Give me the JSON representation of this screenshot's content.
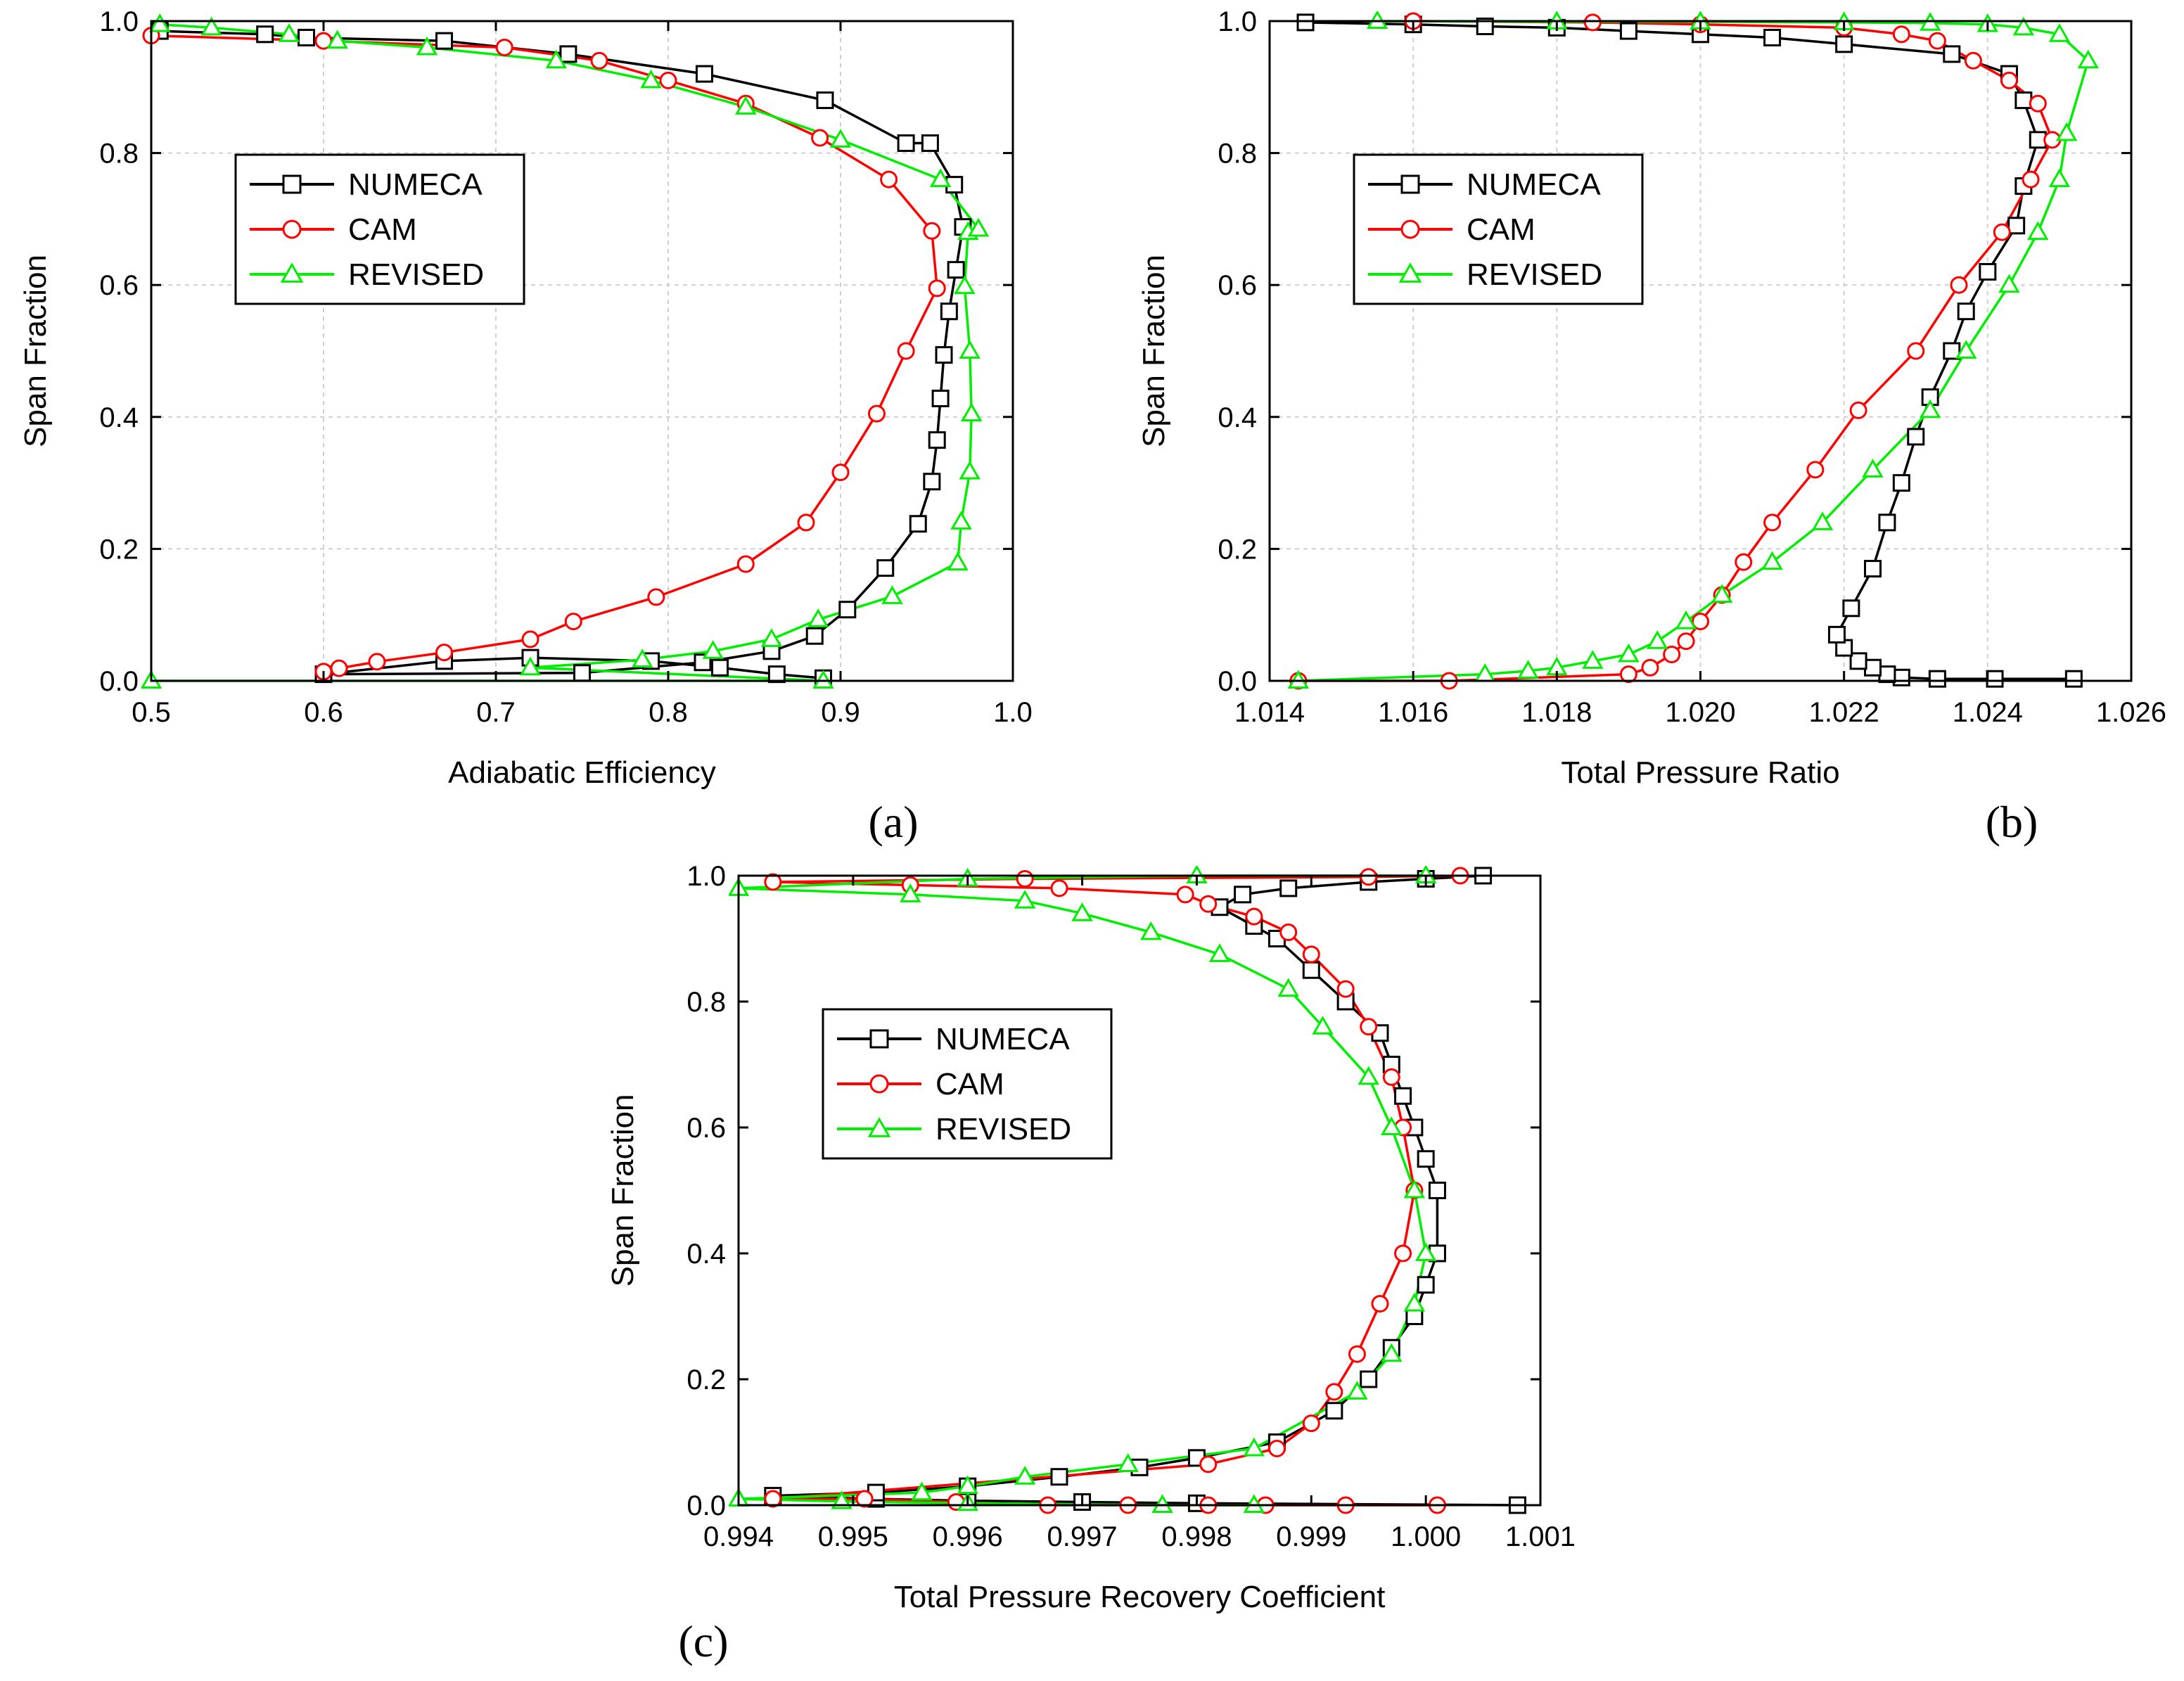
{
  "colors": {
    "NUMECA": "#000000",
    "CAM": "#ff0000",
    "REVISED": "#00ee00",
    "grid": "#cfcfcf"
  },
  "chart_data": [
    {
      "id": "a",
      "type": "line",
      "panel_label": "(a)",
      "xlabel": "Adiabatic Efficiency",
      "ylabel": "Span Fraction",
      "xlim": [
        0.5,
        1.0
      ],
      "ylim": [
        0.0,
        1.0
      ],
      "xticks": [
        0.5,
        0.6,
        0.7,
        0.8,
        0.9,
        1.0
      ],
      "xtick_labels": [
        "0.5",
        "0.6",
        "0.7",
        "0.8",
        "0.9",
        "1.0"
      ],
      "yticks": [
        0.0,
        0.2,
        0.4,
        0.6,
        0.8,
        1.0
      ],
      "ytick_labels": [
        "0.0",
        "0.2",
        "0.4",
        "0.6",
        "0.8",
        "1.0"
      ],
      "grid": true,
      "legend_position": "upper-left",
      "series": [
        {
          "name": "NUMECA",
          "marker": "square",
          "x": [
            0.89,
            0.863,
            0.83,
            0.79,
            0.72,
            0.67,
            0.6,
            0.75,
            0.82,
            0.86,
            0.885,
            0.904,
            0.926,
            0.945,
            0.953,
            0.956,
            0.958,
            0.96,
            0.963,
            0.967,
            0.971,
            0.966,
            0.952,
            0.938,
            0.891,
            0.821,
            0.742,
            0.67,
            0.59,
            0.566,
            0.505
          ],
          "y": [
            0.004,
            0.01,
            0.02,
            0.03,
            0.035,
            0.03,
            0.01,
            0.012,
            0.028,
            0.045,
            0.068,
            0.108,
            0.171,
            0.238,
            0.302,
            0.365,
            0.428,
            0.494,
            0.56,
            0.623,
            0.688,
            0.752,
            0.815,
            0.815,
            0.88,
            0.92,
            0.95,
            0.97,
            0.975,
            0.98,
            0.985
          ]
        },
        {
          "name": "CAM",
          "marker": "circle",
          "x": [
            0.6,
            0.609,
            0.631,
            0.67,
            0.72,
            0.745,
            0.793,
            0.845,
            0.88,
            0.9,
            0.921,
            0.938,
            0.956,
            0.953,
            0.928,
            0.888,
            0.845,
            0.8,
            0.76,
            0.705,
            0.6,
            0.5
          ],
          "y": [
            0.014,
            0.019,
            0.029,
            0.043,
            0.063,
            0.09,
            0.127,
            0.177,
            0.24,
            0.316,
            0.405,
            0.5,
            0.595,
            0.682,
            0.76,
            0.823,
            0.875,
            0.91,
            0.94,
            0.96,
            0.97,
            0.978
          ]
        },
        {
          "name": "REVISED",
          "marker": "triangle",
          "x": [
            0.5,
            0.89,
            0.72,
            0.785,
            0.826,
            0.86,
            0.887,
            0.93,
            0.968,
            0.97,
            0.975,
            0.976,
            0.975,
            0.972,
            0.974,
            0.98,
            0.958,
            0.9,
            0.845,
            0.79,
            0.735,
            0.66,
            0.608,
            0.58,
            0.535,
            0.505
          ],
          "y": [
            0.0,
            0.0,
            0.02,
            0.032,
            0.045,
            0.063,
            0.093,
            0.128,
            0.179,
            0.241,
            0.317,
            0.405,
            0.5,
            0.598,
            0.68,
            0.685,
            0.76,
            0.82,
            0.87,
            0.91,
            0.94,
            0.96,
            0.97,
            0.98,
            0.99,
            0.995
          ]
        }
      ]
    },
    {
      "id": "b",
      "type": "line",
      "panel_label": "(b)",
      "xlabel": "Total Pressure Ratio",
      "ylabel": "Span Fraction",
      "xlim": [
        1.014,
        1.026
      ],
      "ylim": [
        0.0,
        1.0
      ],
      "xticks": [
        1.014,
        1.016,
        1.018,
        1.02,
        1.022,
        1.024,
        1.026
      ],
      "xtick_labels": [
        "1.014",
        "1.016",
        "1.018",
        "1.020",
        "1.022",
        "1.024",
        "1.026"
      ],
      "yticks": [
        0.0,
        0.2,
        0.4,
        0.6,
        0.8,
        1.0
      ],
      "ytick_labels": [
        "0.0",
        "0.2",
        "0.4",
        "0.6",
        "0.8",
        "1.0"
      ],
      "grid": true,
      "legend_position": "upper-left",
      "series": [
        {
          "name": "NUMECA",
          "marker": "square",
          "x": [
            1.0252,
            1.0241,
            1.0233,
            1.0228,
            1.0226,
            1.0224,
            1.0222,
            1.022,
            1.0219,
            1.0221,
            1.0224,
            1.0226,
            1.0228,
            1.023,
            1.0232,
            1.0235,
            1.0237,
            1.024,
            1.0244,
            1.0245,
            1.0247,
            1.0245,
            1.0243,
            1.0235,
            1.022,
            1.021,
            1.02,
            1.019,
            1.018,
            1.017,
            1.016,
            1.0145
          ],
          "y": [
            0.003,
            0.003,
            0.003,
            0.005,
            0.01,
            0.02,
            0.03,
            0.05,
            0.07,
            0.11,
            0.17,
            0.24,
            0.3,
            0.37,
            0.43,
            0.5,
            0.56,
            0.62,
            0.69,
            0.75,
            0.82,
            0.88,
            0.92,
            0.95,
            0.965,
            0.975,
            0.98,
            0.985,
            0.99,
            0.992,
            0.995,
            0.998
          ]
        },
        {
          "name": "CAM",
          "marker": "circle",
          "x": [
            1.0144,
            1.0165,
            1.019,
            1.0193,
            1.0196,
            1.0198,
            1.02,
            1.0203,
            1.0206,
            1.021,
            1.0216,
            1.0222,
            1.023,
            1.0236,
            1.0242,
            1.0246,
            1.0249,
            1.0247,
            1.0243,
            1.0238,
            1.0233,
            1.0228,
            1.022,
            1.02,
            1.0185,
            1.016
          ],
          "y": [
            0.0,
            0.0,
            0.01,
            0.02,
            0.04,
            0.06,
            0.09,
            0.13,
            0.18,
            0.24,
            0.32,
            0.41,
            0.5,
            0.6,
            0.68,
            0.76,
            0.82,
            0.875,
            0.91,
            0.94,
            0.97,
            0.98,
            0.99,
            0.995,
            0.998,
            1.0
          ]
        },
        {
          "name": "REVISED",
          "marker": "triangle",
          "x": [
            1.0144,
            1.017,
            1.0176,
            1.018,
            1.0185,
            1.019,
            1.0194,
            1.0198,
            1.0203,
            1.021,
            1.0217,
            1.0224,
            1.0232,
            1.0237,
            1.0243,
            1.0247,
            1.025,
            1.0251,
            1.0254,
            1.025,
            1.0245,
            1.024,
            1.0232,
            1.022,
            1.02,
            1.018,
            1.0155
          ],
          "y": [
            0.0,
            0.01,
            0.015,
            0.02,
            0.03,
            0.04,
            0.06,
            0.09,
            0.13,
            0.18,
            0.24,
            0.32,
            0.41,
            0.5,
            0.6,
            0.68,
            0.76,
            0.83,
            0.94,
            0.98,
            0.99,
            0.995,
            0.997,
            0.998,
            0.999,
            0.999,
            1.0
          ]
        }
      ]
    },
    {
      "id": "c",
      "type": "line",
      "panel_label": "(c)",
      "xlabel": "Total Pressure Recovery Coefficient",
      "ylabel": "Span Fraction",
      "xlim": [
        0.994,
        1.001
      ],
      "ylim": [
        0.0,
        1.0
      ],
      "xticks": [
        0.994,
        0.995,
        0.996,
        0.997,
        0.998,
        0.999,
        1.0,
        1.001
      ],
      "xtick_labels": [
        "0.994",
        "0.995",
        "0.996",
        "0.997",
        "0.998",
        "0.999",
        "1.000",
        "1.001"
      ],
      "yticks": [
        0.0,
        0.2,
        0.4,
        0.6,
        0.8,
        1.0
      ],
      "ytick_labels": [
        "0.0",
        "0.2",
        "0.4",
        "0.6",
        "0.8",
        "1.0"
      ],
      "grid": false,
      "legend_position": "upper-left",
      "series": [
        {
          "name": "NUMECA",
          "marker": "square",
          "x": [
            1.0008,
            0.998,
            0.997,
            0.996,
            0.9952,
            0.9943,
            0.9952,
            0.996,
            0.9968,
            0.9975,
            0.998,
            0.9987,
            0.9992,
            0.9995,
            0.9997,
            0.9999,
            1.0,
            1.0001,
            1.0001,
            1.0,
            0.9999,
            0.9998,
            0.9997,
            0.9996,
            0.9993,
            0.999,
            0.9987,
            0.9985,
            0.9982,
            0.9984,
            0.9988,
            0.9995,
            1.0,
            1.0005
          ],
          "y": [
            0.0,
            0.003,
            0.005,
            0.007,
            0.01,
            0.015,
            0.02,
            0.03,
            0.045,
            0.06,
            0.075,
            0.1,
            0.15,
            0.2,
            0.25,
            0.3,
            0.35,
            0.4,
            0.5,
            0.55,
            0.6,
            0.65,
            0.7,
            0.75,
            0.8,
            0.85,
            0.9,
            0.92,
            0.95,
            0.97,
            0.98,
            0.99,
            0.995,
            1.0
          ]
        },
        {
          "name": "CAM",
          "marker": "circle",
          "x": [
            1.0001,
            0.9993,
            0.9986,
            0.9981,
            0.9974,
            0.9967,
            0.9959,
            0.9951,
            0.9943,
            0.9981,
            0.9987,
            0.999,
            0.9992,
            0.9994,
            0.9996,
            0.9998,
            0.9999,
            0.9998,
            0.9997,
            0.9995,
            0.9993,
            0.999,
            0.9988,
            0.9985,
            0.9981,
            0.9979,
            0.9968,
            0.9955,
            0.9943,
            0.9965,
            0.9995,
            1.0003
          ],
          "y": [
            0.0,
            0.0,
            0.0,
            0.0,
            0.0,
            0.0,
            0.005,
            0.01,
            0.01,
            0.065,
            0.09,
            0.13,
            0.18,
            0.24,
            0.32,
            0.4,
            0.5,
            0.6,
            0.68,
            0.76,
            0.82,
            0.875,
            0.91,
            0.935,
            0.955,
            0.97,
            0.98,
            0.985,
            0.99,
            0.995,
            0.998,
            1.0
          ]
        },
        {
          "name": "REVISED",
          "marker": "triangle",
          "x": [
            0.9985,
            0.9977,
            0.996,
            0.9949,
            0.994,
            0.9956,
            0.996,
            0.9965,
            0.9974,
            0.9985,
            0.9994,
            0.9997,
            0.9999,
            1.0,
            0.9999,
            0.9997,
            0.9995,
            0.9991,
            0.9988,
            0.9982,
            0.9976,
            0.997,
            0.9965,
            0.9955,
            0.994,
            0.996,
            0.998,
            1.0
          ],
          "y": [
            0.0,
            0.0,
            0.003,
            0.006,
            0.01,
            0.02,
            0.03,
            0.045,
            0.065,
            0.09,
            0.18,
            0.24,
            0.32,
            0.4,
            0.5,
            0.6,
            0.68,
            0.76,
            0.82,
            0.875,
            0.91,
            0.94,
            0.96,
            0.97,
            0.98,
            0.995,
            1.0,
            1.0
          ]
        }
      ]
    }
  ]
}
